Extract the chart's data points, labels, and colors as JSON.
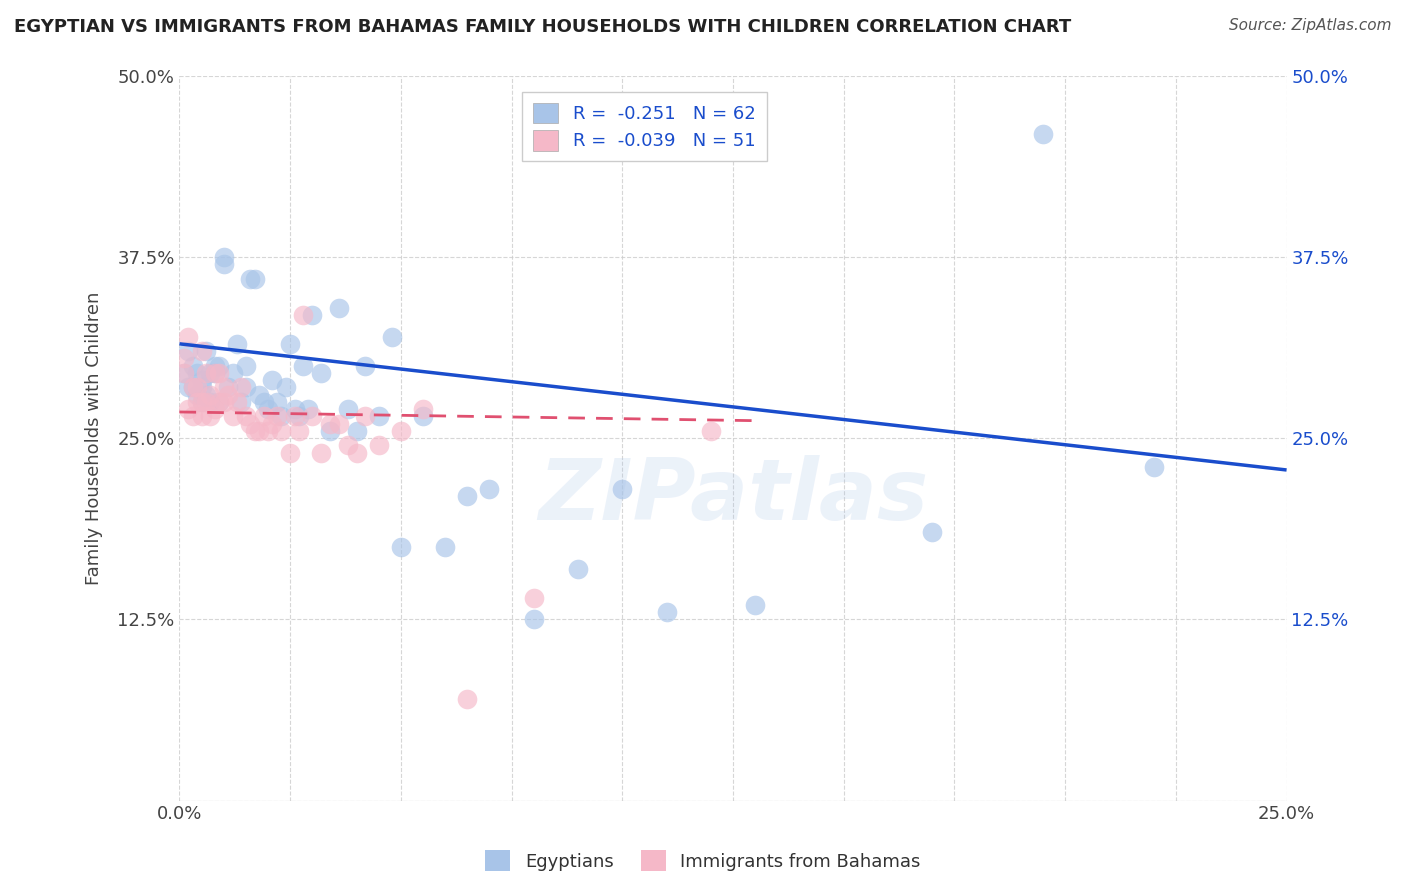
{
  "title": "EGYPTIAN VS IMMIGRANTS FROM BAHAMAS FAMILY HOUSEHOLDS WITH CHILDREN CORRELATION CHART",
  "source": "Source: ZipAtlas.com",
  "ylabel": "Family Households with Children",
  "xlim": [
    0.0,
    0.25
  ],
  "ylim": [
    0.0,
    0.5
  ],
  "xticks": [
    0.0,
    0.025,
    0.05,
    0.075,
    0.1,
    0.125,
    0.15,
    0.175,
    0.2,
    0.225,
    0.25
  ],
  "yticks": [
    0.0,
    0.125,
    0.25,
    0.375,
    0.5
  ],
  "xticklabels_show": [
    "0.0%",
    "25.0%"
  ],
  "yticklabels": [
    "12.5%",
    "25.0%",
    "37.5%",
    "50.0%"
  ],
  "legend_r1": "R =  -0.251   N = 62",
  "legend_r2": "R =  -0.039   N = 51",
  "legend_label1": "Egyptians",
  "legend_label2": "Immigrants from Bahamas",
  "blue_color": "#a8c4e8",
  "pink_color": "#f5b8c8",
  "blue_line_color": "#1a4dcc",
  "pink_line_color": "#e05070",
  "watermark": "ZIPatlas",
  "blue_scatter_x": [
    0.001,
    0.002,
    0.002,
    0.003,
    0.003,
    0.004,
    0.004,
    0.005,
    0.005,
    0.005,
    0.006,
    0.006,
    0.007,
    0.007,
    0.008,
    0.008,
    0.009,
    0.009,
    0.01,
    0.01,
    0.011,
    0.012,
    0.013,
    0.014,
    0.015,
    0.015,
    0.016,
    0.017,
    0.018,
    0.019,
    0.02,
    0.021,
    0.022,
    0.023,
    0.024,
    0.025,
    0.026,
    0.027,
    0.028,
    0.029,
    0.03,
    0.032,
    0.034,
    0.036,
    0.038,
    0.04,
    0.042,
    0.045,
    0.048,
    0.05,
    0.055,
    0.06,
    0.065,
    0.07,
    0.08,
    0.09,
    0.1,
    0.11,
    0.13,
    0.17,
    0.195,
    0.22
  ],
  "blue_scatter_y": [
    0.295,
    0.31,
    0.285,
    0.3,
    0.285,
    0.295,
    0.28,
    0.29,
    0.285,
    0.275,
    0.31,
    0.28,
    0.295,
    0.275,
    0.295,
    0.3,
    0.3,
    0.275,
    0.37,
    0.375,
    0.285,
    0.295,
    0.315,
    0.275,
    0.3,
    0.285,
    0.36,
    0.36,
    0.28,
    0.275,
    0.27,
    0.29,
    0.275,
    0.265,
    0.285,
    0.315,
    0.27,
    0.265,
    0.3,
    0.27,
    0.335,
    0.295,
    0.255,
    0.34,
    0.27,
    0.255,
    0.3,
    0.265,
    0.32,
    0.175,
    0.265,
    0.175,
    0.21,
    0.215,
    0.125,
    0.16,
    0.215,
    0.13,
    0.135,
    0.185,
    0.46,
    0.23
  ],
  "pink_scatter_x": [
    0.001,
    0.001,
    0.002,
    0.002,
    0.003,
    0.003,
    0.004,
    0.004,
    0.005,
    0.005,
    0.005,
    0.006,
    0.006,
    0.007,
    0.007,
    0.008,
    0.008,
    0.009,
    0.009,
    0.01,
    0.01,
    0.011,
    0.012,
    0.013,
    0.014,
    0.015,
    0.016,
    0.017,
    0.018,
    0.019,
    0.02,
    0.021,
    0.022,
    0.023,
    0.025,
    0.026,
    0.027,
    0.028,
    0.03,
    0.032,
    0.034,
    0.036,
    0.038,
    0.04,
    0.042,
    0.045,
    0.05,
    0.055,
    0.065,
    0.08,
    0.12
  ],
  "pink_scatter_y": [
    0.295,
    0.305,
    0.32,
    0.27,
    0.285,
    0.265,
    0.285,
    0.275,
    0.275,
    0.265,
    0.31,
    0.295,
    0.275,
    0.28,
    0.265,
    0.295,
    0.27,
    0.295,
    0.275,
    0.285,
    0.275,
    0.28,
    0.265,
    0.275,
    0.285,
    0.265,
    0.26,
    0.255,
    0.255,
    0.265,
    0.255,
    0.26,
    0.265,
    0.255,
    0.24,
    0.265,
    0.255,
    0.335,
    0.265,
    0.24,
    0.26,
    0.26,
    0.245,
    0.24,
    0.265,
    0.245,
    0.255,
    0.27,
    0.07,
    0.14,
    0.255
  ],
  "blue_line_x0": 0.0,
  "blue_line_y0": 0.315,
  "blue_line_x1": 0.25,
  "blue_line_y1": 0.228,
  "pink_line_x0": 0.0,
  "pink_line_y0": 0.268,
  "pink_line_x1": 0.13,
  "pink_line_y1": 0.262
}
